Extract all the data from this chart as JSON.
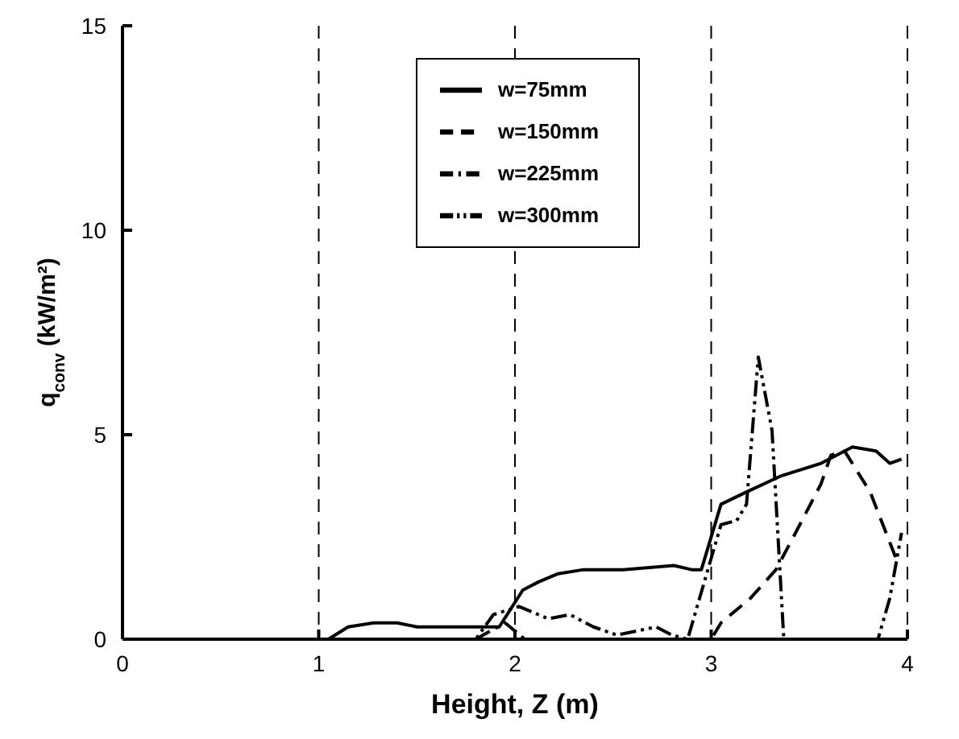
{
  "chart_data": {
    "type": "line",
    "xlabel": "Height, Z (m)",
    "ylabel": "q$_{conv}$ (kW/m²)",
    "xlim": [
      0,
      4
    ],
    "ylim": [
      0,
      15
    ],
    "xticks": [
      0,
      1,
      2,
      3,
      4
    ],
    "yticks": [
      0,
      5,
      10,
      15
    ],
    "grid": "x",
    "legend": "top",
    "marker": "none",
    "series": [
      {
        "name": "w=75mm",
        "color": "#000000",
        "line_style": "solid",
        "x": [
          0,
          1.05,
          1.15,
          1.28,
          1.4,
          1.5,
          1.7,
          1.85,
          1.92,
          2.04,
          2.12,
          2.22,
          2.35,
          2.55,
          2.81,
          2.9,
          2.95,
          3.05,
          3.18,
          3.36,
          3.56,
          3.72,
          3.84,
          3.91,
          3.97
        ],
        "values": [
          0,
          0,
          0.3,
          0.4,
          0.4,
          0.3,
          0.3,
          0.3,
          0.3,
          1.2,
          1.4,
          1.6,
          1.7,
          1.7,
          1.8,
          1.7,
          1.7,
          3.3,
          3.6,
          4.0,
          4.3,
          4.7,
          4.6,
          4.3,
          4.4
        ]
      },
      {
        "name": "w=150mm",
        "color": "#000000",
        "line_style": "dashed",
        "x": [
          0,
          3.0,
          3.05,
          3.2,
          3.33,
          3.43,
          3.56,
          3.61,
          3.68,
          3.81,
          3.94
        ],
        "values": [
          0,
          0,
          0.4,
          1.0,
          1.7,
          2.6,
          3.8,
          4.5,
          4.6,
          3.6,
          2.0
        ]
      },
      {
        "name": "w=225mm",
        "color": "#000000",
        "line_style": "dashdot",
        "x": [
          1.8,
          1.95,
          2.05
        ],
        "values": [
          0,
          0.4,
          0
        ]
      },
      {
        "name": "w=300mm",
        "color": "#000000",
        "line_style": "dashdotdot",
        "x": [
          0,
          1.8,
          1.89,
          2.02,
          2.17,
          2.28,
          2.4,
          2.52,
          2.62,
          2.72,
          2.8,
          2.88,
          3.05,
          3.13,
          3.18,
          3.24,
          3.31,
          3.37,
          3.85,
          3.91,
          3.97
        ],
        "values": [
          0,
          0,
          0.6,
          0.8,
          0.5,
          0.6,
          0.3,
          0.1,
          0.2,
          0.3,
          0.1,
          0,
          2.8,
          2.9,
          3.3,
          6.9,
          5.1,
          0,
          0,
          1.0,
          2.6
        ]
      }
    ]
  }
}
